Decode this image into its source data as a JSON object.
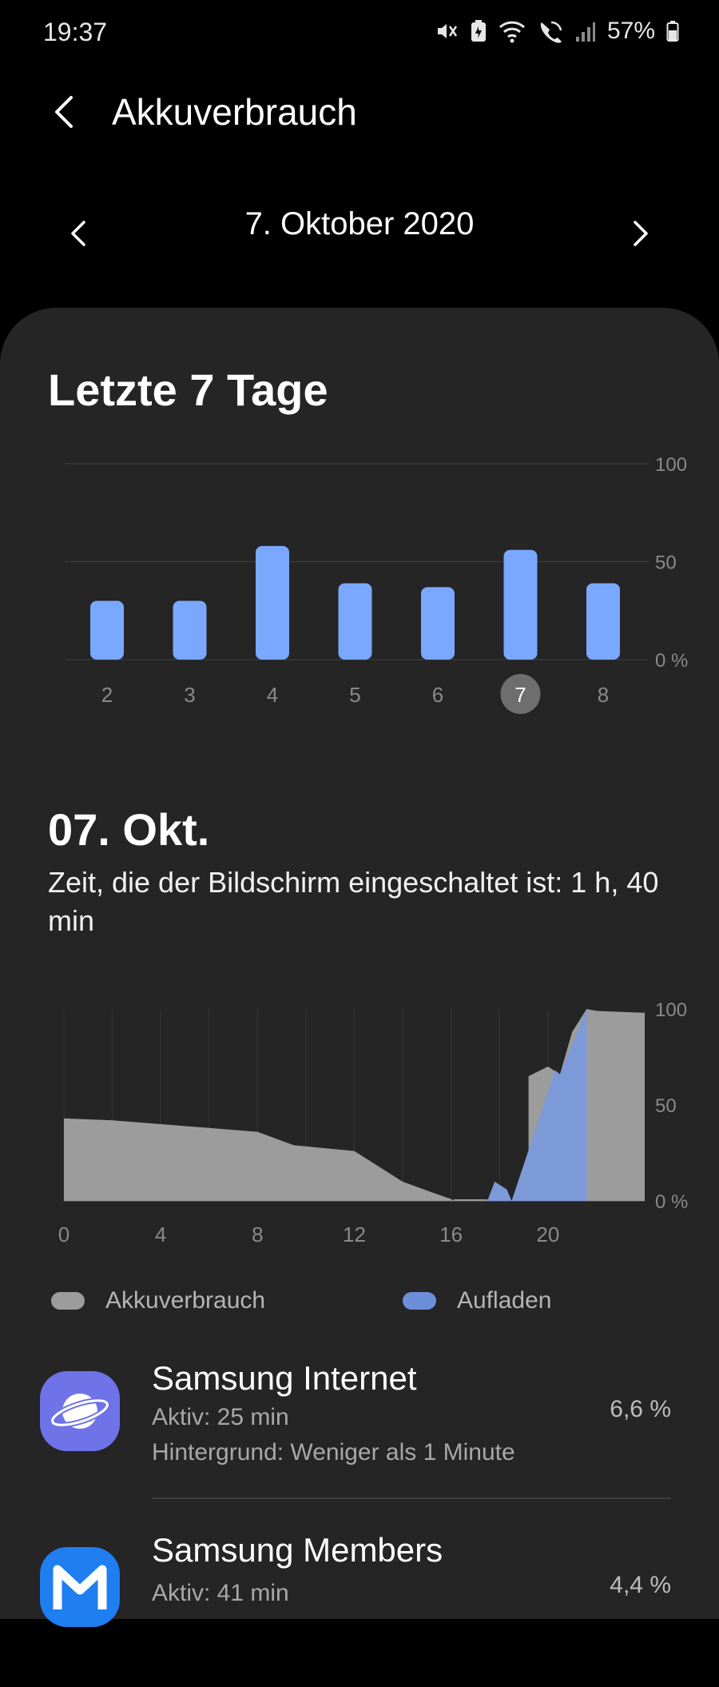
{
  "status_bar": {
    "time": "19:37",
    "battery_percent": "57%",
    "icons": [
      "mute-vibrate-icon",
      "battery-saver-icon",
      "wifi-icon",
      "wifi-calling-icon",
      "signal-icon",
      "battery-icon"
    ]
  },
  "header": {
    "title": "Akkuverbrauch",
    "back_icon": "back-arrow-icon"
  },
  "date_nav": {
    "label": "7. Oktober 2020",
    "prev_icon": "chevron-left-icon",
    "next_icon": "chevron-right-icon"
  },
  "week_section": {
    "title": "Letzte 7 Tage"
  },
  "day_section": {
    "title": "07. Okt.",
    "subtitle": "Zeit, die der Bildschirm eingeschaltet ist: 1 h, 40 min"
  },
  "chart_data": [
    {
      "type": "bar",
      "categories": [
        "2",
        "3",
        "4",
        "5",
        "6",
        "7",
        "8"
      ],
      "values": [
        30,
        30,
        58,
        39,
        37,
        56,
        39
      ],
      "selected_category": "7",
      "y_tick_labels": [
        "0 %",
        "50",
        "100"
      ],
      "ylim": [
        0,
        100
      ],
      "grid": true,
      "colors": {
        "bar": "#7aa8ff",
        "selected_badge": "#6e6e6e"
      }
    },
    {
      "type": "area",
      "x_tick_labels": [
        "0",
        "4",
        "8",
        "12",
        "16",
        "20"
      ],
      "y_tick_labels": [
        "0 %",
        "50",
        "100"
      ],
      "xlim": [
        0,
        24
      ],
      "ylim": [
        0,
        100
      ],
      "grid": true,
      "series": [
        {
          "name": "Akkuverbrauch",
          "color": "#9c9c9c",
          "segments": [
            {
              "x": [
                0,
                2,
                4,
                6,
                8,
                9.5,
                12,
                14,
                15.3,
                16,
                16.1
              ],
              "y": [
                43,
                42,
                40,
                38,
                36,
                29,
                26,
                10,
                4,
                1,
                0
              ]
            },
            {
              "x": [
                19.2,
                20,
                20.5,
                21,
                21.6,
                22,
                24
              ],
              "y": [
                65,
                70,
                66,
                88,
                100,
                99,
                98
              ]
            }
          ]
        },
        {
          "name": "Aufladen",
          "color": "#7d9ad8",
          "segments": [
            {
              "x": [
                17.5,
                17.8,
                18.3,
                18.5,
                20.3,
                20.5,
                21.6,
                21.6
              ],
              "y": [
                0,
                10,
                6,
                0,
                68,
                66,
                100,
                0
              ]
            }
          ]
        }
      ],
      "legend_position": "bottom"
    }
  ],
  "legend": [
    {
      "label": "Akkuverbrauch",
      "color": "#9c9c9c"
    },
    {
      "label": "Aufladen",
      "color": "#6b8fd9"
    }
  ],
  "apps": [
    {
      "name": "Samsung Internet",
      "active": "Aktiv: 25 min",
      "background": "Hintergrund: Weniger als 1 Minute",
      "percent": "6,6 %",
      "icon": "samsung-internet-planet-icon",
      "icon_color": "#6f73e8"
    },
    {
      "name": "Samsung Members",
      "active": "Aktiv: 41 min",
      "percent": "4,4 %",
      "icon": "samsung-members-m-icon",
      "icon_color": "#1f7ef0"
    }
  ]
}
